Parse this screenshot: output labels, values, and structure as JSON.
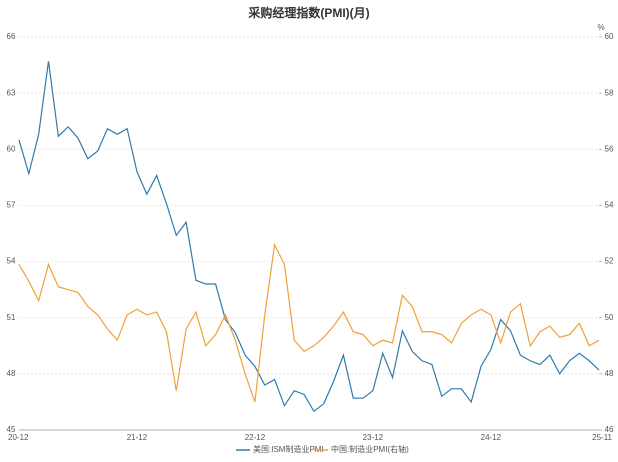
{
  "chart_data": {
    "type": "line",
    "title": "采购经理指数(PMI)(月)",
    "categories": [
      "20-12",
      null,
      null,
      null,
      null,
      null,
      null,
      null,
      null,
      null,
      null,
      null,
      "21-12",
      null,
      null,
      null,
      null,
      null,
      null,
      null,
      null,
      null,
      null,
      null,
      "22-12",
      null,
      null,
      null,
      null,
      null,
      null,
      null,
      null,
      null,
      null,
      null,
      "23-12",
      null,
      null,
      null,
      null,
      null,
      null,
      null,
      null,
      null,
      null,
      null,
      "24-12",
      null,
      null,
      null,
      null,
      null,
      null,
      null,
      null,
      null,
      null,
      "25-11"
    ],
    "series": [
      {
        "name": "美国:ISM制造业PMI",
        "color": "#2f7bab",
        "values": [
          60.5,
          58.7,
          60.8,
          64.7,
          60.7,
          61.2,
          60.6,
          59.5,
          59.9,
          61.1,
          60.8,
          61.1,
          58.8,
          57.6,
          58.6,
          57.1,
          55.4,
          56.1,
          53.0,
          52.8,
          52.8,
          50.9,
          50.2,
          49.0,
          48.4,
          47.4,
          47.7,
          46.3,
          47.1,
          46.9,
          46.0,
          46.4,
          47.6,
          49.0,
          46.7,
          46.7,
          47.1,
          49.1,
          47.8,
          50.3,
          49.2,
          48.7,
          48.5,
          46.8,
          47.2,
          47.2,
          46.5,
          48.4,
          49.3,
          50.9,
          50.3,
          49.0,
          48.7,
          48.5,
          49.0,
          48.0,
          48.7,
          49.1,
          48.7,
          48.2
        ]
      },
      {
        "name": "中国:制造业PMI(右轴)",
        "color": "#f0a035",
        "axis": "y2",
        "values": [
          51.9,
          51.3,
          50.6,
          51.9,
          51.1,
          51.0,
          50.9,
          50.4,
          50.1,
          49.6,
          49.2,
          50.1,
          50.3,
          50.1,
          50.2,
          49.5,
          47.4,
          49.6,
          50.2,
          49.0,
          49.4,
          50.1,
          49.2,
          48.0,
          47.0,
          50.1,
          52.6,
          51.9,
          49.2,
          48.8,
          49.0,
          49.3,
          49.7,
          50.2,
          49.5,
          49.4,
          49.0,
          49.2,
          49.1,
          50.8,
          50.4,
          49.5,
          49.5,
          49.4,
          49.1,
          49.8,
          50.1,
          50.3,
          50.1,
          49.1,
          50.2,
          50.5,
          49.0,
          49.5,
          49.7,
          49.3,
          49.4,
          49.8,
          49.0,
          49.2
        ]
      }
    ],
    "ylim": [
      45,
      66
    ],
    "yticks": [
      45,
      48,
      51,
      54,
      57,
      60,
      63,
      66
    ],
    "y2lim": [
      46,
      60
    ],
    "y2ticks": [
      46,
      48,
      50,
      52,
      54,
      56,
      58,
      60
    ],
    "y2_unit": "%",
    "grid": true
  }
}
